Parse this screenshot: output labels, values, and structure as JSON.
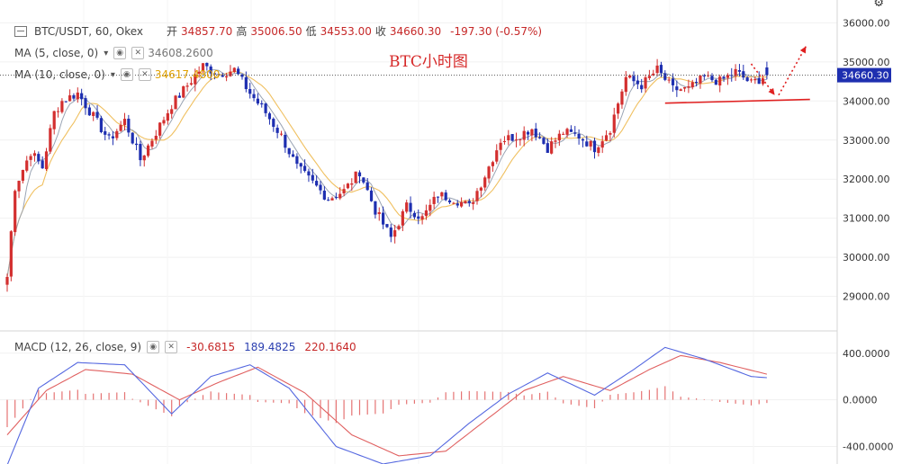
{
  "legend": {
    "symbol": "BTC/USDT, 60, Okex",
    "open_label": "开",
    "open": "34857.70",
    "high_label": "高",
    "high": "35006.50",
    "low_label": "低",
    "low": "34553.00",
    "close_label": "收",
    "close": "34660.30",
    "change": "-197.30 (-0.57%)",
    "ma5_label": "MA (5, close, 0)",
    "ma5_value": "34608.2600",
    "ma10_label": "MA (10, close, 0)",
    "ma10_value": "34617.4800",
    "macd_label": "MACD (12, 26, close, 9)",
    "macd_hist": "-30.6815",
    "macd_line": "189.4825",
    "macd_signal": "220.1640"
  },
  "annotation": "BTC小时图",
  "current_price_tag": "34660.30",
  "colors": {
    "up": "#d32f2f",
    "down": "#1e2fb0",
    "ma5": "#9aa4b4",
    "ma10": "#f0c060",
    "macd": "#5568e0",
    "signal": "#e06060",
    "hist": "#e57373",
    "axis_text": "#333333",
    "drawing": "#e02020"
  },
  "chart_data": {
    "type": "candlestick",
    "price_axis": {
      "ticks": [
        29000,
        30000,
        31000,
        32000,
        33000,
        34000,
        35000,
        36000
      ],
      "tick_labels": [
        "29000.00",
        "30000.00",
        "31000.00",
        "32000.00",
        "33000.00",
        "34000.00",
        "35000.00",
        "36000.00"
      ],
      "range": [
        28300,
        36400
      ]
    },
    "macd_axis": {
      "ticks": [
        400,
        0,
        -400
      ],
      "tick_labels": [
        "400.0000",
        "0.0000",
        "-400.0000"
      ],
      "range": [
        -550,
        560
      ]
    },
    "close_anchors": [
      [
        0,
        29500
      ],
      [
        2,
        31800
      ],
      [
        6,
        32700
      ],
      [
        9,
        32300
      ],
      [
        12,
        33700
      ],
      [
        14,
        34000
      ],
      [
        18,
        34200
      ],
      [
        22,
        33600
      ],
      [
        26,
        33000
      ],
      [
        30,
        33500
      ],
      [
        34,
        32500
      ],
      [
        38,
        33200
      ],
      [
        42,
        33900
      ],
      [
        46,
        34400
      ],
      [
        50,
        34900
      ],
      [
        54,
        34700
      ],
      [
        58,
        34800
      ],
      [
        62,
        34200
      ],
      [
        66,
        33700
      ],
      [
        70,
        33100
      ],
      [
        74,
        32300
      ],
      [
        78,
        31900
      ],
      [
        82,
        31500
      ],
      [
        86,
        31700
      ],
      [
        90,
        32200
      ],
      [
        94,
        31200
      ],
      [
        98,
        30500
      ],
      [
        102,
        31300
      ],
      [
        106,
        31000
      ],
      [
        110,
        31600
      ],
      [
        114,
        31500
      ],
      [
        118,
        31300
      ],
      [
        122,
        32100
      ],
      [
        126,
        33000
      ],
      [
        130,
        33100
      ],
      [
        134,
        33300
      ],
      [
        138,
        32800
      ],
      [
        142,
        33200
      ],
      [
        146,
        33100
      ],
      [
        150,
        32800
      ],
      [
        154,
        33300
      ],
      [
        158,
        34600
      ],
      [
        162,
        34400
      ],
      [
        166,
        34800
      ],
      [
        170,
        34300
      ],
      [
        174,
        34300
      ],
      [
        178,
        34600
      ],
      [
        182,
        34500
      ],
      [
        186,
        34750
      ],
      [
        190,
        34450
      ],
      [
        194,
        34660
      ]
    ],
    "last_bar": {
      "open": 34857.7,
      "high": 35006.5,
      "low": 34553.0,
      "close": 34660.3
    },
    "macd_anchors": [
      [
        0,
        -560
      ],
      [
        8,
        100
      ],
      [
        18,
        320
      ],
      [
        30,
        300
      ],
      [
        42,
        -120
      ],
      [
        52,
        200
      ],
      [
        62,
        300
      ],
      [
        72,
        100
      ],
      [
        84,
        -400
      ],
      [
        96,
        -550
      ],
      [
        108,
        -480
      ],
      [
        118,
        -200
      ],
      [
        128,
        50
      ],
      [
        138,
        230
      ],
      [
        150,
        40
      ],
      [
        160,
        260
      ],
      [
        168,
        450
      ],
      [
        178,
        350
      ],
      [
        190,
        200
      ],
      [
        194,
        190
      ]
    ],
    "signal_anchors": [
      [
        0,
        -300
      ],
      [
        10,
        80
      ],
      [
        20,
        260
      ],
      [
        32,
        220
      ],
      [
        44,
        0
      ],
      [
        54,
        150
      ],
      [
        64,
        280
      ],
      [
        76,
        60
      ],
      [
        88,
        -300
      ],
      [
        100,
        -480
      ],
      [
        112,
        -440
      ],
      [
        122,
        -180
      ],
      [
        132,
        80
      ],
      [
        142,
        200
      ],
      [
        154,
        80
      ],
      [
        164,
        260
      ],
      [
        172,
        380
      ],
      [
        182,
        320
      ],
      [
        194,
        220
      ]
    ],
    "drawings": {
      "support_line": {
        "from": [
          168,
          33990
        ],
        "to": [
          205,
          34040
        ]
      },
      "arrow_down": {
        "from": [
          190,
          34950
        ],
        "to": [
          196,
          34150
        ]
      },
      "arrow_up": {
        "from": [
          197,
          34150
        ],
        "to": [
          204,
          35400
        ]
      }
    }
  }
}
